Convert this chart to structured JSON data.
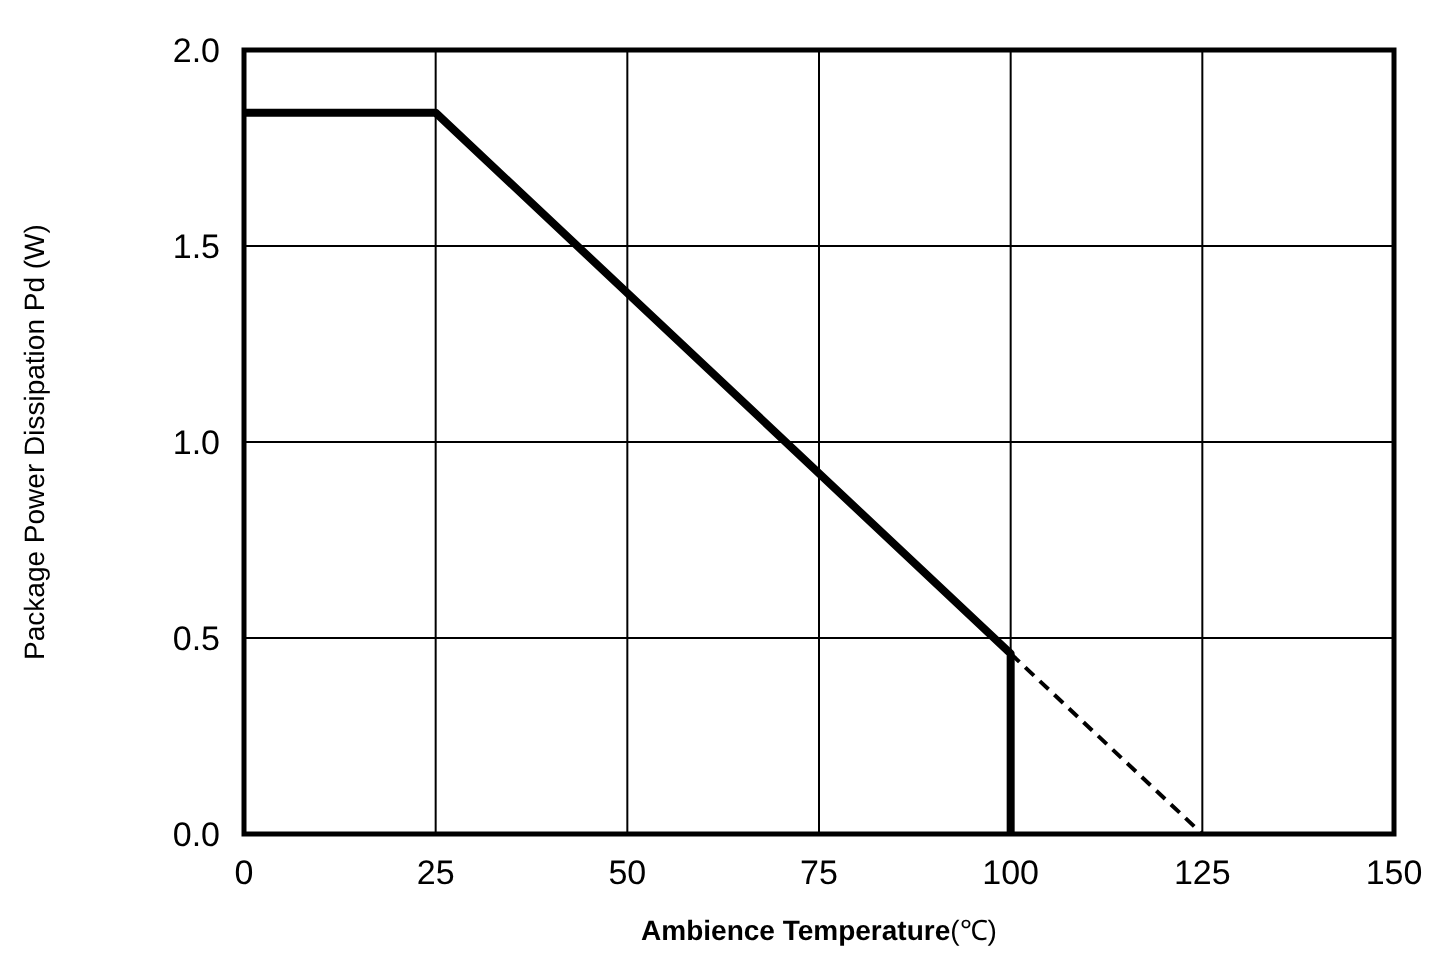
{
  "chart_data": {
    "type": "line",
    "xlabel": "Ambience Temperature(℃)",
    "ylabel": "Package Power Dissipation Pd (W)",
    "xlim": [
      0,
      150
    ],
    "xticks": [
      0,
      25,
      50,
      75,
      100,
      125,
      150
    ],
    "ylim": [
      0,
      2.0
    ],
    "yticks": [
      {
        "value": 0,
        "label": "0.0"
      },
      {
        "value": 0.5,
        "label": "0.5"
      },
      {
        "value": 1,
        "label": "1.0"
      },
      {
        "value": 1.5,
        "label": "1.5"
      },
      {
        "value": 2,
        "label": "2.0"
      }
    ],
    "grid": true,
    "marker": "none",
    "series": [
      {
        "color": "#000000",
        "line_style": "solid",
        "x": [
          0,
          25,
          100,
          100
        ],
        "values": [
          1.84,
          1.84,
          0.46,
          0
        ]
      },
      {
        "color": "#000000",
        "line_style": "dashed",
        "x": [
          100,
          125
        ],
        "values": [
          0.46,
          0
        ]
      }
    ]
  }
}
